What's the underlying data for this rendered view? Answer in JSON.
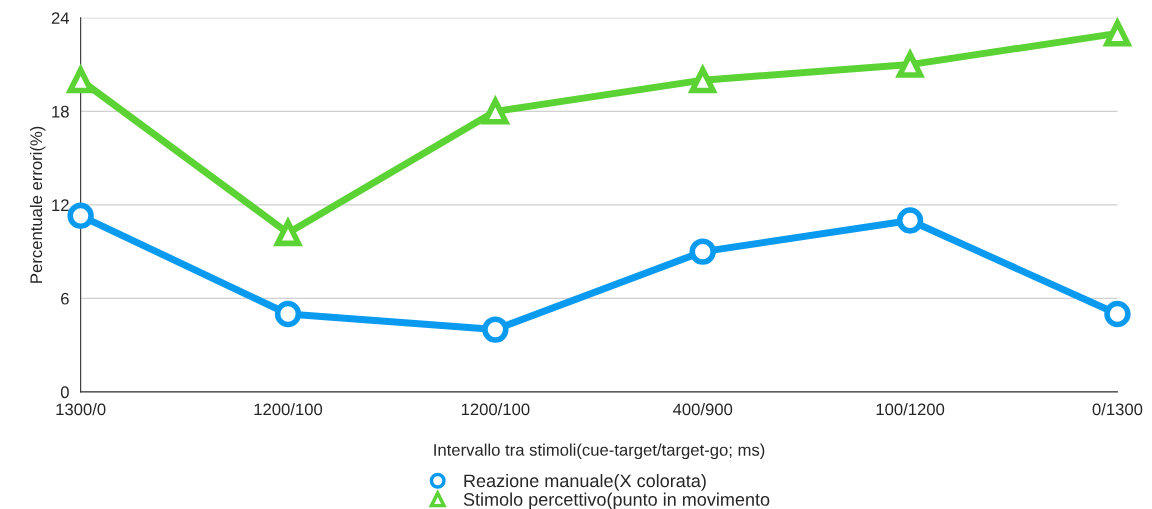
{
  "chart_data": {
    "type": "line",
    "xlabel": "Intervallo tra stimoli(cue-target/target-go; ms)",
    "ylabel": "Percentuale errori(%)",
    "categories": [
      "1300/0",
      "1200/100",
      "1200/100",
      "400/900",
      "100/1200",
      "0/1300"
    ],
    "series": [
      {
        "name": "Reazione manuale(X colorata)",
        "color": "#0a9bf0",
        "marker": "circle",
        "values": [
          11.3,
          5,
          4,
          9,
          11,
          5
        ]
      },
      {
        "name": "Stimolo percettivo(punto in movimento",
        "color": "#5cd334",
        "marker": "triangle",
        "values": [
          20,
          10.2,
          18,
          20,
          21,
          23
        ]
      }
    ],
    "ylim": [
      0,
      24
    ],
    "yticks": [
      0,
      6,
      12,
      18,
      24
    ],
    "grid": "y",
    "legend": "bottom",
    "line_style": "solid"
  }
}
